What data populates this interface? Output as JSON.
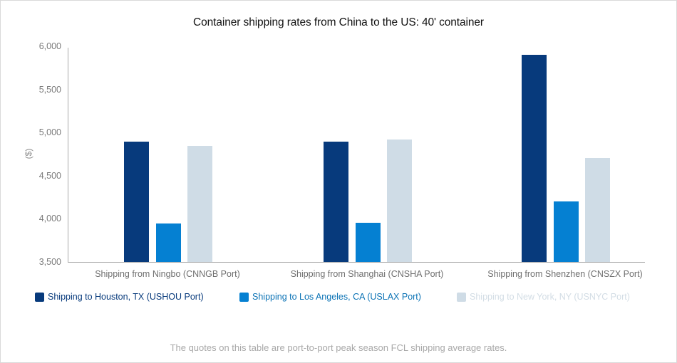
{
  "chart_data": {
    "type": "bar",
    "title": "Container shipping rates from China to the US: 40' container",
    "xlabel": "",
    "ylabel": "($)",
    "ylim": [
      3500,
      6000
    ],
    "yticks": [
      "6,000",
      "5,500",
      "5,000",
      "4,500",
      "4,000",
      "3,500"
    ],
    "grid": false,
    "legend_position": "bottom",
    "categories": [
      "Shipping from Ningbo (CNNGB Port)",
      "Shipping from Shanghai (CNSHA Port)",
      "Shipping from Shenzhen (CNSZX Port)"
    ],
    "series": [
      {
        "name": "Shipping to Houston, TX (USHOU Port)",
        "color": "#073A7C",
        "values": [
          4900,
          4900,
          5915
        ]
      },
      {
        "name": "Shipping to Los Angeles, CA (USLAX Port)",
        "color": "#0580D2",
        "values": [
          3950,
          3960,
          4210
        ]
      },
      {
        "name": "Shipping to New York, NY (USNYC Port)",
        "color": "#CFDCE6",
        "values": [
          4850,
          4925,
          4710
        ]
      }
    ],
    "footnote": "The quotes on this table are port-to-port peak season FCL shipping average rates."
  },
  "legend_text_colors": [
    "#073A7C",
    "#0A72B5",
    "#D3DDE5"
  ]
}
